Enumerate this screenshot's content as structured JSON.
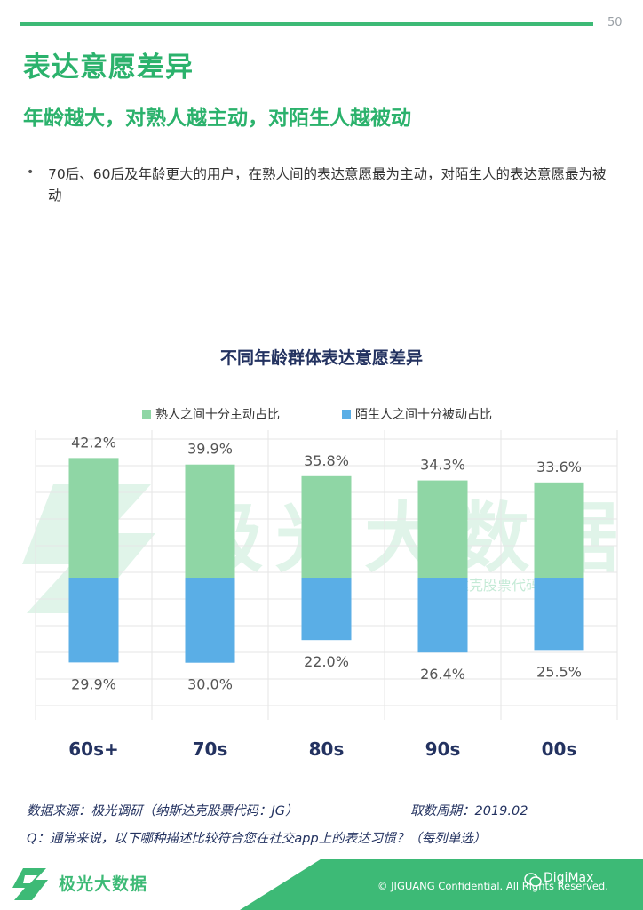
{
  "page": {
    "number": "50"
  },
  "header": {
    "title": "表达意愿差异",
    "subtitle": "年龄越大，对熟人越主动，对陌生人越被动"
  },
  "bullet": {
    "marker": "•",
    "text": "70后、60后及年龄更大的用户，在熟人间的表达意愿最为主动，对陌生人的表达意愿最为被动"
  },
  "watermark": {
    "text": "极光大数据",
    "sub": "纳斯达克股票代码：JG"
  },
  "chart_data": {
    "type": "bar",
    "title": "不同年龄群体表达意愿差异",
    "categories": [
      "60s+",
      "70s",
      "80s",
      "90s",
      "00s"
    ],
    "series": [
      {
        "name": "熟人之间十分主动占比",
        "values": [
          42.2,
          39.9,
          35.8,
          34.3,
          33.6
        ],
        "labels": [
          "42.2%",
          "39.9%",
          "35.8%",
          "34.3%",
          "33.6%"
        ],
        "color": "#8fd6a5",
        "direction": "up"
      },
      {
        "name": "陌生人之间十分被动占比",
        "values": [
          29.9,
          30.0,
          22.0,
          26.4,
          25.5
        ],
        "labels": [
          "29.9%",
          "30.0%",
          "22.0%",
          "26.4%",
          "25.5%"
        ],
        "color": "#5aaee6",
        "direction": "down"
      }
    ],
    "legend": "top",
    "grid": true
  },
  "footer": {
    "source": "数据来源：极光调研（纳斯达克股票代码：JG）",
    "period": "取数周期：2019.02",
    "question": "Q：通常来说，以下哪种描述比较符合您在社交app上的表达习惯？（每列单选）"
  },
  "brand": {
    "name": "极光大数据",
    "copyright": "© JIGUANG Confidential. All Rights Reserved.",
    "wechat": "DigiMax"
  },
  "colors": {
    "accent": "#2bb26c",
    "navy": "#233260",
    "green_bar": "#8fd6a5",
    "blue_bar": "#5aaee6"
  }
}
